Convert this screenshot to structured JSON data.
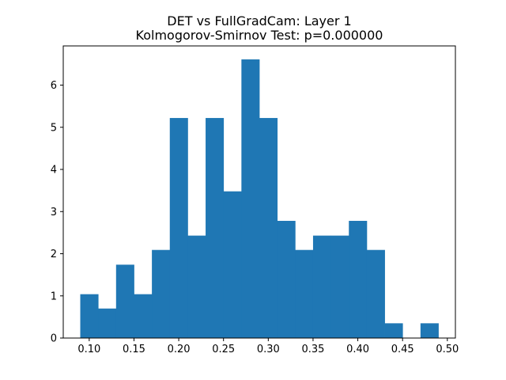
{
  "chart_data": {
    "type": "bar",
    "subtype": "histogram",
    "title": "DET vs FullGradCam: Layer 1",
    "subtitle": "Kolmogorov-Smirnov Test: p=0.000000",
    "xlabel": "",
    "ylabel": "",
    "xlim": [
      0.071,
      0.509
    ],
    "ylim": [
      0,
      6.93
    ],
    "grid": false,
    "bar_color": "#1f77b4",
    "bin_edges": [
      0.09,
      0.11,
      0.13,
      0.15,
      0.17,
      0.19,
      0.21,
      0.23,
      0.25,
      0.27,
      0.29,
      0.31,
      0.33,
      0.35,
      0.37,
      0.39,
      0.41,
      0.43,
      0.45,
      0.47,
      0.49
    ],
    "values": [
      1.04,
      0.7,
      1.74,
      1.04,
      2.09,
      5.22,
      2.43,
      5.22,
      3.48,
      6.61,
      5.22,
      2.78,
      2.09,
      2.43,
      2.43,
      2.78,
      2.09,
      0.35,
      0,
      0.35
    ],
    "x_ticks": [
      {
        "value": 0.1,
        "label": "0.10"
      },
      {
        "value": 0.15,
        "label": "0.15"
      },
      {
        "value": 0.2,
        "label": "0.20"
      },
      {
        "value": 0.25,
        "label": "0.25"
      },
      {
        "value": 0.3,
        "label": "0.30"
      },
      {
        "value": 0.35,
        "label": "0.35"
      },
      {
        "value": 0.4,
        "label": "0.40"
      },
      {
        "value": 0.45,
        "label": "0.45"
      },
      {
        "value": 0.5,
        "label": "0.50"
      }
    ],
    "y_ticks": [
      {
        "value": 0,
        "label": "0"
      },
      {
        "value": 1,
        "label": "1"
      },
      {
        "value": 2,
        "label": "2"
      },
      {
        "value": 3,
        "label": "3"
      },
      {
        "value": 4,
        "label": "4"
      },
      {
        "value": 5,
        "label": "5"
      },
      {
        "value": 6,
        "label": "6"
      }
    ]
  }
}
